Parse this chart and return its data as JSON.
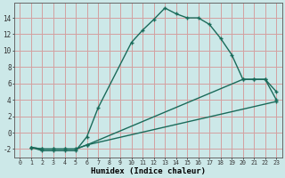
{
  "xlabel": "Humidex (Indice chaleur)",
  "bg_color": "#cce8e8",
  "grid_color": "#d4a0a0",
  "line_color": "#1a6b5a",
  "xlim": [
    -0.5,
    23.5
  ],
  "ylim": [
    -3.0,
    15.8
  ],
  "xticks": [
    0,
    1,
    2,
    3,
    4,
    5,
    6,
    7,
    8,
    9,
    10,
    11,
    12,
    13,
    14,
    15,
    16,
    17,
    18,
    19,
    20,
    21,
    22,
    23
  ],
  "yticks": [
    -2,
    0,
    2,
    4,
    6,
    8,
    10,
    12,
    14
  ],
  "line1_x": [
    1,
    2,
    3,
    4,
    5,
    6,
    7,
    10,
    11,
    12,
    13,
    14,
    15,
    16,
    17,
    18,
    19,
    20,
    21,
    22,
    23
  ],
  "line1_y": [
    -1.8,
    -2.2,
    -2.2,
    -2.2,
    -2.2,
    -0.5,
    3.0,
    11.0,
    12.5,
    13.8,
    15.2,
    14.5,
    14.0,
    14.0,
    13.2,
    11.5,
    9.5,
    6.5,
    6.5,
    6.5,
    5.0
  ],
  "line2_x": [
    1,
    2,
    3,
    4,
    5,
    6,
    23
  ],
  "line2_y": [
    -1.8,
    -2.0,
    -2.0,
    -2.0,
    -2.0,
    -1.5,
    3.8
  ],
  "line3_x": [
    1,
    2,
    3,
    4,
    5,
    6,
    20,
    21,
    22,
    23
  ],
  "line3_y": [
    -1.8,
    -2.0,
    -2.0,
    -2.0,
    -2.0,
    -1.5,
    6.5,
    6.5,
    6.5,
    4.0
  ]
}
